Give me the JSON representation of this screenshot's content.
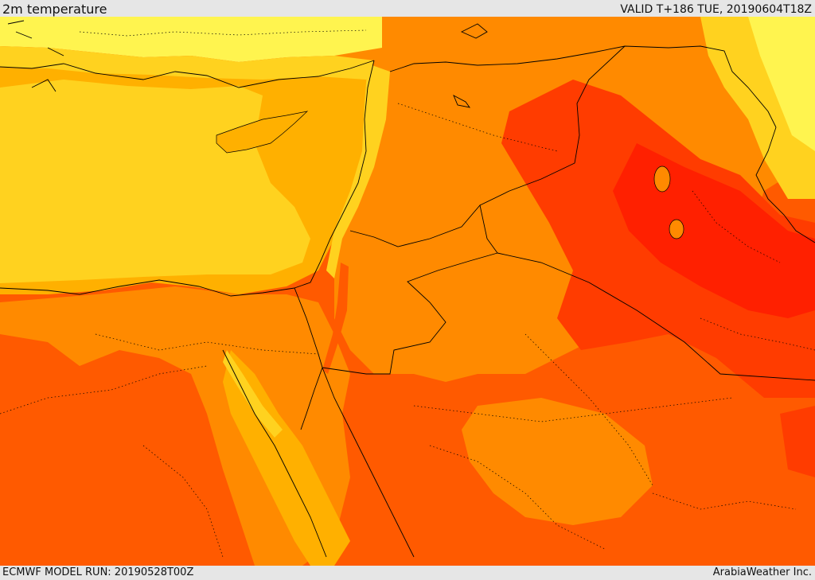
{
  "header": {
    "title": "2m temperature",
    "valid": "VALID T+186 TUE, 20190604T18Z"
  },
  "footer": {
    "run": "ECMWF MODEL RUN: 20190528T00Z",
    "credit": "ArabiaWeather Inc."
  },
  "map": {
    "variable": "2m temperature",
    "palette": [
      "#fff44f",
      "#ffd21f",
      "#ffb000",
      "#ff8a00",
      "#ff5a00",
      "#ff2000",
      "#f3fb67"
    ],
    "icons": [
      "sea-region",
      "land-region",
      "country-border",
      "admin-boundary"
    ]
  }
}
